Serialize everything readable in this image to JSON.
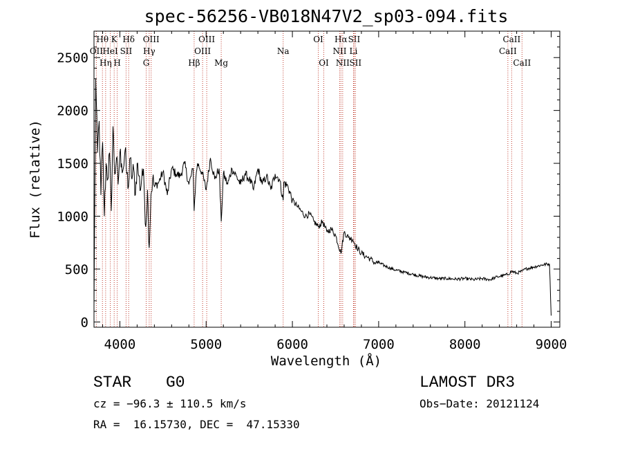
{
  "chart_data": {
    "type": "line",
    "title": "spec-56256-VB018N47V2_sp03-094.fits",
    "xlabel": "Wavelength (Å)",
    "ylabel": "Flux (relative)",
    "xlim": [
      3700,
      9100
    ],
    "ylim": [
      -50,
      2750
    ],
    "xticks": [
      4000,
      5000,
      6000,
      7000,
      8000,
      9000
    ],
    "yticks": [
      0,
      500,
      1000,
      1500,
      2000,
      2500
    ],
    "series": [
      {
        "name": "flux",
        "x": [
          3700,
          3720,
          3740,
          3760,
          3780,
          3800,
          3820,
          3840,
          3860,
          3880,
          3900,
          3920,
          3940,
          3960,
          3980,
          4000,
          4020,
          4040,
          4060,
          4080,
          4100,
          4120,
          4140,
          4160,
          4180,
          4200,
          4220,
          4240,
          4260,
          4280,
          4300,
          4320,
          4340,
          4360,
          4380,
          4400,
          4450,
          4500,
          4550,
          4600,
          4650,
          4700,
          4750,
          4800,
          4850,
          4861,
          4880,
          4900,
          4950,
          5000,
          5050,
          5100,
          5150,
          5175,
          5200,
          5250,
          5300,
          5350,
          5400,
          5450,
          5500,
          5550,
          5600,
          5650,
          5700,
          5750,
          5800,
          5850,
          5893,
          5900,
          5950,
          6000,
          6050,
          6100,
          6150,
          6200,
          6250,
          6300,
          6350,
          6400,
          6450,
          6500,
          6563,
          6600,
          6650,
          6700,
          6750,
          6800,
          6850,
          6900,
          6950,
          7000,
          7100,
          7200,
          7300,
          7400,
          7500,
          7600,
          7700,
          7800,
          7900,
          8000,
          8100,
          8200,
          8300,
          8350,
          8400,
          8450,
          8500,
          8540,
          8600,
          8662,
          8700,
          8800,
          8900,
          8980,
          9000
        ],
        "values": [
          150,
          2300,
          1600,
          1900,
          1200,
          1700,
          1000,
          1500,
          1350,
          1600,
          1050,
          1850,
          1400,
          1550,
          1300,
          1600,
          1500,
          1450,
          1620,
          1400,
          1280,
          1550,
          1350,
          1450,
          1200,
          1500,
          1380,
          1250,
          1450,
          1300,
          900,
          1250,
          700,
          1200,
          1350,
          1280,
          1320,
          1420,
          1200,
          1450,
          1400,
          1380,
          1500,
          1300,
          1450,
          1050,
          1350,
          1500,
          1420,
          1250,
          1550,
          1350,
          1450,
          950,
          1400,
          1300,
          1450,
          1380,
          1300,
          1400,
          1350,
          1250,
          1450,
          1300,
          1380,
          1250,
          1400,
          1350,
          1150,
          1320,
          1280,
          1150,
          1100,
          1050,
          1000,
          1020,
          950,
          900,
          950,
          850,
          880,
          820,
          650,
          850,
          800,
          780,
          700,
          650,
          620,
          600,
          560,
          560,
          520,
          490,
          470,
          450,
          430,
          420,
          410,
          410,
          405,
          410,
          400,
          410,
          400,
          420,
          430,
          440,
          450,
          480,
          460,
          480,
          500,
          520,
          540,
          550,
          60
        ]
      }
    ],
    "lines": [
      {
        "label": "Hθ",
        "x": 3798,
        "row": 0
      },
      {
        "label": "OII",
        "x": 3727,
        "row": 1
      },
      {
        "label": "Hη",
        "x": 3835,
        "row": 2
      },
      {
        "label": "K",
        "x": 3934,
        "row": 0
      },
      {
        "label": "HeI",
        "x": 3889,
        "row": 1
      },
      {
        "label": "H",
        "x": 3969,
        "row": 2
      },
      {
        "label": "Hδ",
        "x": 4102,
        "row": 0
      },
      {
        "label": "SII",
        "x": 4072,
        "row": 1
      },
      {
        "label": "OIII",
        "x": 4363,
        "row": 0
      },
      {
        "label": "Hγ",
        "x": 4340,
        "row": 1
      },
      {
        "label": "G",
        "x": 4305,
        "row": 2
      },
      {
        "label": "OIII",
        "x": 5007,
        "row": 0
      },
      {
        "label": "OIII",
        "x": 4959,
        "row": 1
      },
      {
        "label": "Hβ",
        "x": 4861,
        "row": 2
      },
      {
        "label": "Mg",
        "x": 5175,
        "row": 2
      },
      {
        "label": "Na",
        "x": 5893,
        "row": 1
      },
      {
        "label": "OI",
        "x": 6300,
        "row": 0
      },
      {
        "label": "OI",
        "x": 6364,
        "row": 2
      },
      {
        "label": "Hα",
        "x": 6563,
        "row": 0
      },
      {
        "label": "SII",
        "x": 6716,
        "row": 0
      },
      {
        "label": "NII",
        "x": 6548,
        "row": 1
      },
      {
        "label": "Li",
        "x": 6708,
        "row": 1
      },
      {
        "label": "NII",
        "x": 6583,
        "row": 2
      },
      {
        "label": "SII",
        "x": 6731,
        "row": 2
      },
      {
        "label": "CaII",
        "x": 8542,
        "row": 0
      },
      {
        "label": "CaII",
        "x": 8498,
        "row": 1
      },
      {
        "label": "CaII",
        "x": 8662,
        "row": 2
      }
    ]
  },
  "info": {
    "class": "STAR",
    "subclass": "G0",
    "survey": "LAMOST DR3",
    "cz": "cz = −96.3 ± 110.5 km/s",
    "obs_date": "Obs−Date: 20121124",
    "coords": "RA =  16.15730, DEC =  47.15330"
  }
}
